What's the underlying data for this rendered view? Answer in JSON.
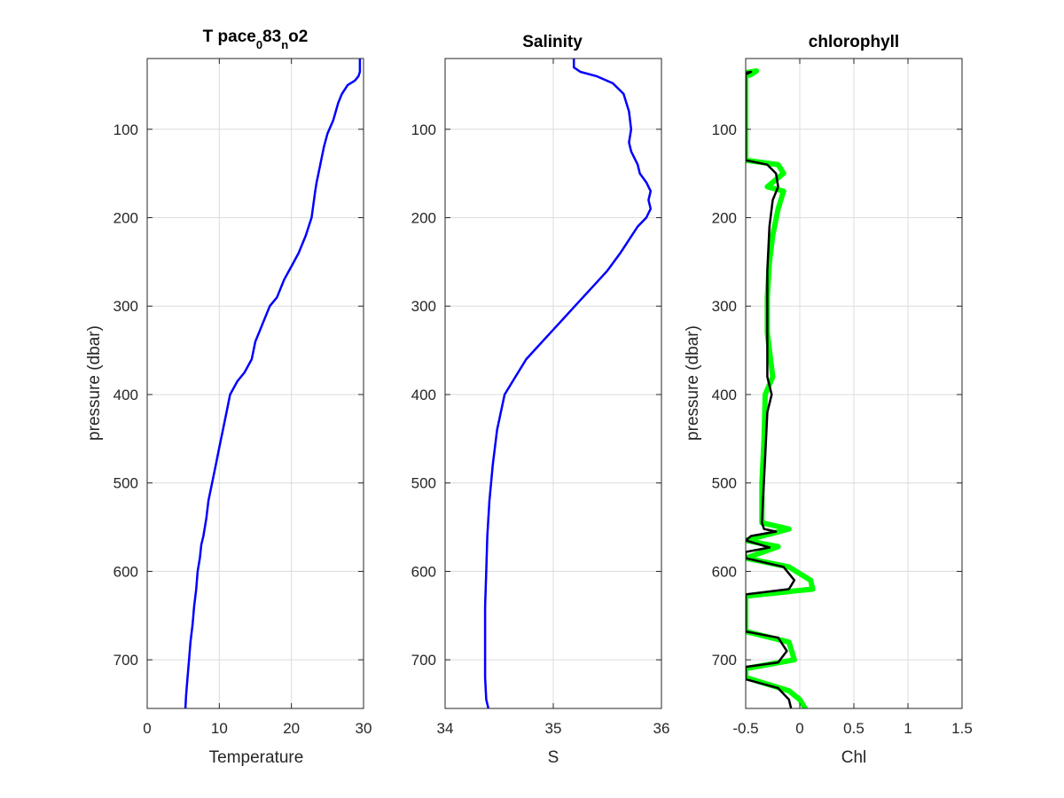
{
  "chart_data": [
    {
      "type": "line",
      "title": "T pace",
      "title_sub1": "0",
      "title_mid": "83",
      "title_sub2": "n",
      "title_end": "o2",
      "xlabel": "Temperature",
      "ylabel": "pressure (dbar)",
      "xlim": [
        0,
        30
      ],
      "ylim": [
        20,
        755
      ],
      "y_reversed": true,
      "x_ticks": [
        0,
        10,
        20,
        30
      ],
      "y_ticks": [
        100,
        200,
        300,
        400,
        500,
        600,
        700
      ],
      "grid": true,
      "series": [
        {
          "color": "#0000ff",
          "x": [
            29.5,
            29.5,
            29.3,
            28.8,
            27.8,
            27.0,
            26.5,
            25.8,
            25.0,
            24.5,
            24.0,
            23.5,
            23.3,
            22.8,
            22.0,
            21.0,
            20.0,
            19.0,
            18.0,
            17.0,
            16.5,
            15.5,
            15.0,
            14.5,
            13.5,
            12.5,
            11.5,
            11.0,
            10.5,
            10.0,
            9.5,
            9.0,
            8.5,
            8.2,
            7.8,
            7.5,
            7.3,
            7.0,
            6.8,
            6.5,
            6.3,
            6.0,
            5.8,
            5.6,
            5.4,
            5.3
          ],
          "y": [
            20,
            35,
            40,
            45,
            50,
            60,
            70,
            90,
            105,
            120,
            140,
            160,
            170,
            200,
            220,
            240,
            255,
            270,
            290,
            300,
            310,
            330,
            340,
            360,
            375,
            385,
            400,
            420,
            440,
            460,
            480,
            500,
            520,
            540,
            560,
            570,
            585,
            600,
            620,
            640,
            660,
            680,
            700,
            720,
            740,
            755
          ]
        }
      ]
    },
    {
      "type": "line",
      "title": "Salinity",
      "xlabel": "S",
      "xlim": [
        34,
        36
      ],
      "ylim": [
        20,
        755
      ],
      "y_reversed": true,
      "x_ticks": [
        34,
        35,
        36
      ],
      "y_ticks": [
        100,
        200,
        300,
        400,
        500,
        600,
        700
      ],
      "grid": true,
      "series": [
        {
          "color": "#ff0000",
          "x": [
            35.19,
            35.19,
            35.25,
            35.4,
            35.55,
            35.65,
            35.7,
            35.72,
            35.7,
            35.72,
            35.78,
            35.8,
            35.86,
            35.9,
            35.88,
            35.9,
            35.86,
            35.78,
            35.7,
            35.62,
            35.5,
            35.35,
            35.2,
            35.05,
            34.9,
            34.75,
            34.65,
            34.55,
            34.48,
            34.44,
            34.41,
            34.39,
            34.38,
            34.37,
            34.37,
            34.37,
            34.38,
            34.4
          ],
          "y": [
            20,
            30,
            35,
            40,
            48,
            60,
            80,
            100,
            115,
            125,
            140,
            150,
            160,
            170,
            180,
            190,
            200,
            210,
            225,
            240,
            260,
            280,
            300,
            320,
            340,
            360,
            380,
            400,
            440,
            480,
            520,
            560,
            600,
            640,
            680,
            720,
            745,
            755
          ]
        },
        {
          "color": "#0000ff",
          "x": [
            35.19,
            35.19,
            35.25,
            35.4,
            35.55,
            35.65,
            35.7,
            35.72,
            35.7,
            35.72,
            35.78,
            35.8,
            35.86,
            35.9,
            35.88,
            35.9,
            35.86,
            35.78,
            35.7,
            35.62,
            35.5,
            35.35,
            35.2,
            35.05,
            34.9,
            34.75,
            34.65,
            34.55,
            34.48,
            34.44,
            34.41,
            34.39,
            34.38,
            34.37,
            34.37,
            34.37,
            34.38,
            34.4
          ],
          "y": [
            20,
            30,
            35,
            40,
            48,
            60,
            80,
            100,
            115,
            125,
            140,
            150,
            160,
            170,
            180,
            190,
            200,
            210,
            225,
            240,
            260,
            280,
            300,
            320,
            340,
            360,
            380,
            400,
            440,
            480,
            520,
            560,
            600,
            640,
            680,
            720,
            745,
            755
          ]
        }
      ]
    },
    {
      "type": "line",
      "title": "chlorophyll",
      "xlabel": "Chl",
      "ylabel": "pressure (dbar)",
      "xlim": [
        -0.5,
        1.5
      ],
      "ylim": [
        20,
        755
      ],
      "y_reversed": true,
      "x_ticks": [
        -0.5,
        0,
        0.5,
        1,
        1.5
      ],
      "y_ticks": [
        100,
        200,
        300,
        400,
        500,
        600,
        700
      ],
      "grid": true,
      "series": [
        {
          "color": "#00ff00",
          "x": [
            -0.5,
            -0.4,
            -0.45,
            -0.5,
            -0.5,
            -0.2,
            -0.15,
            -0.3,
            -0.15,
            -0.2,
            -0.25,
            -0.28,
            -0.3,
            -0.3,
            -0.25,
            -0.32,
            -0.33,
            -0.35,
            -0.35,
            -0.1,
            -0.5,
            -0.2,
            -0.5,
            -0.1,
            0.1,
            0.12,
            -0.5,
            -0.5,
            -0.1,
            -0.05,
            -0.5,
            -0.5,
            -0.1,
            0.0,
            0.05
          ],
          "y": [
            36,
            34,
            38,
            40,
            135,
            140,
            150,
            165,
            170,
            190,
            220,
            250,
            290,
            330,
            380,
            400,
            450,
            500,
            545,
            552,
            565,
            572,
            585,
            595,
            610,
            620,
            628,
            668,
            680,
            700,
            710,
            720,
            735,
            745,
            755
          ]
        },
        {
          "color": "#000000",
          "x": [
            -0.5,
            -0.45,
            -0.5,
            -0.5,
            -0.3,
            -0.22,
            -0.2,
            -0.25,
            -0.28,
            -0.3,
            -0.3,
            -0.3,
            -0.26,
            -0.3,
            -0.32,
            -0.34,
            -0.35,
            -0.33,
            -0.22,
            -0.45,
            -0.5,
            -0.28,
            -0.5,
            -0.5,
            -0.15,
            -0.05,
            -0.1,
            -0.5,
            -0.5,
            -0.2,
            -0.12,
            -0.2,
            -0.5,
            -0.5,
            -0.2,
            -0.1,
            -0.08
          ],
          "y": [
            36,
            35,
            38,
            135,
            140,
            150,
            165,
            180,
            210,
            260,
            320,
            380,
            400,
            420,
            470,
            520,
            545,
            552,
            555,
            560,
            565,
            573,
            578,
            585,
            595,
            610,
            620,
            626,
            668,
            675,
            690,
            703,
            708,
            722,
            732,
            745,
            755
          ]
        }
      ]
    }
  ]
}
